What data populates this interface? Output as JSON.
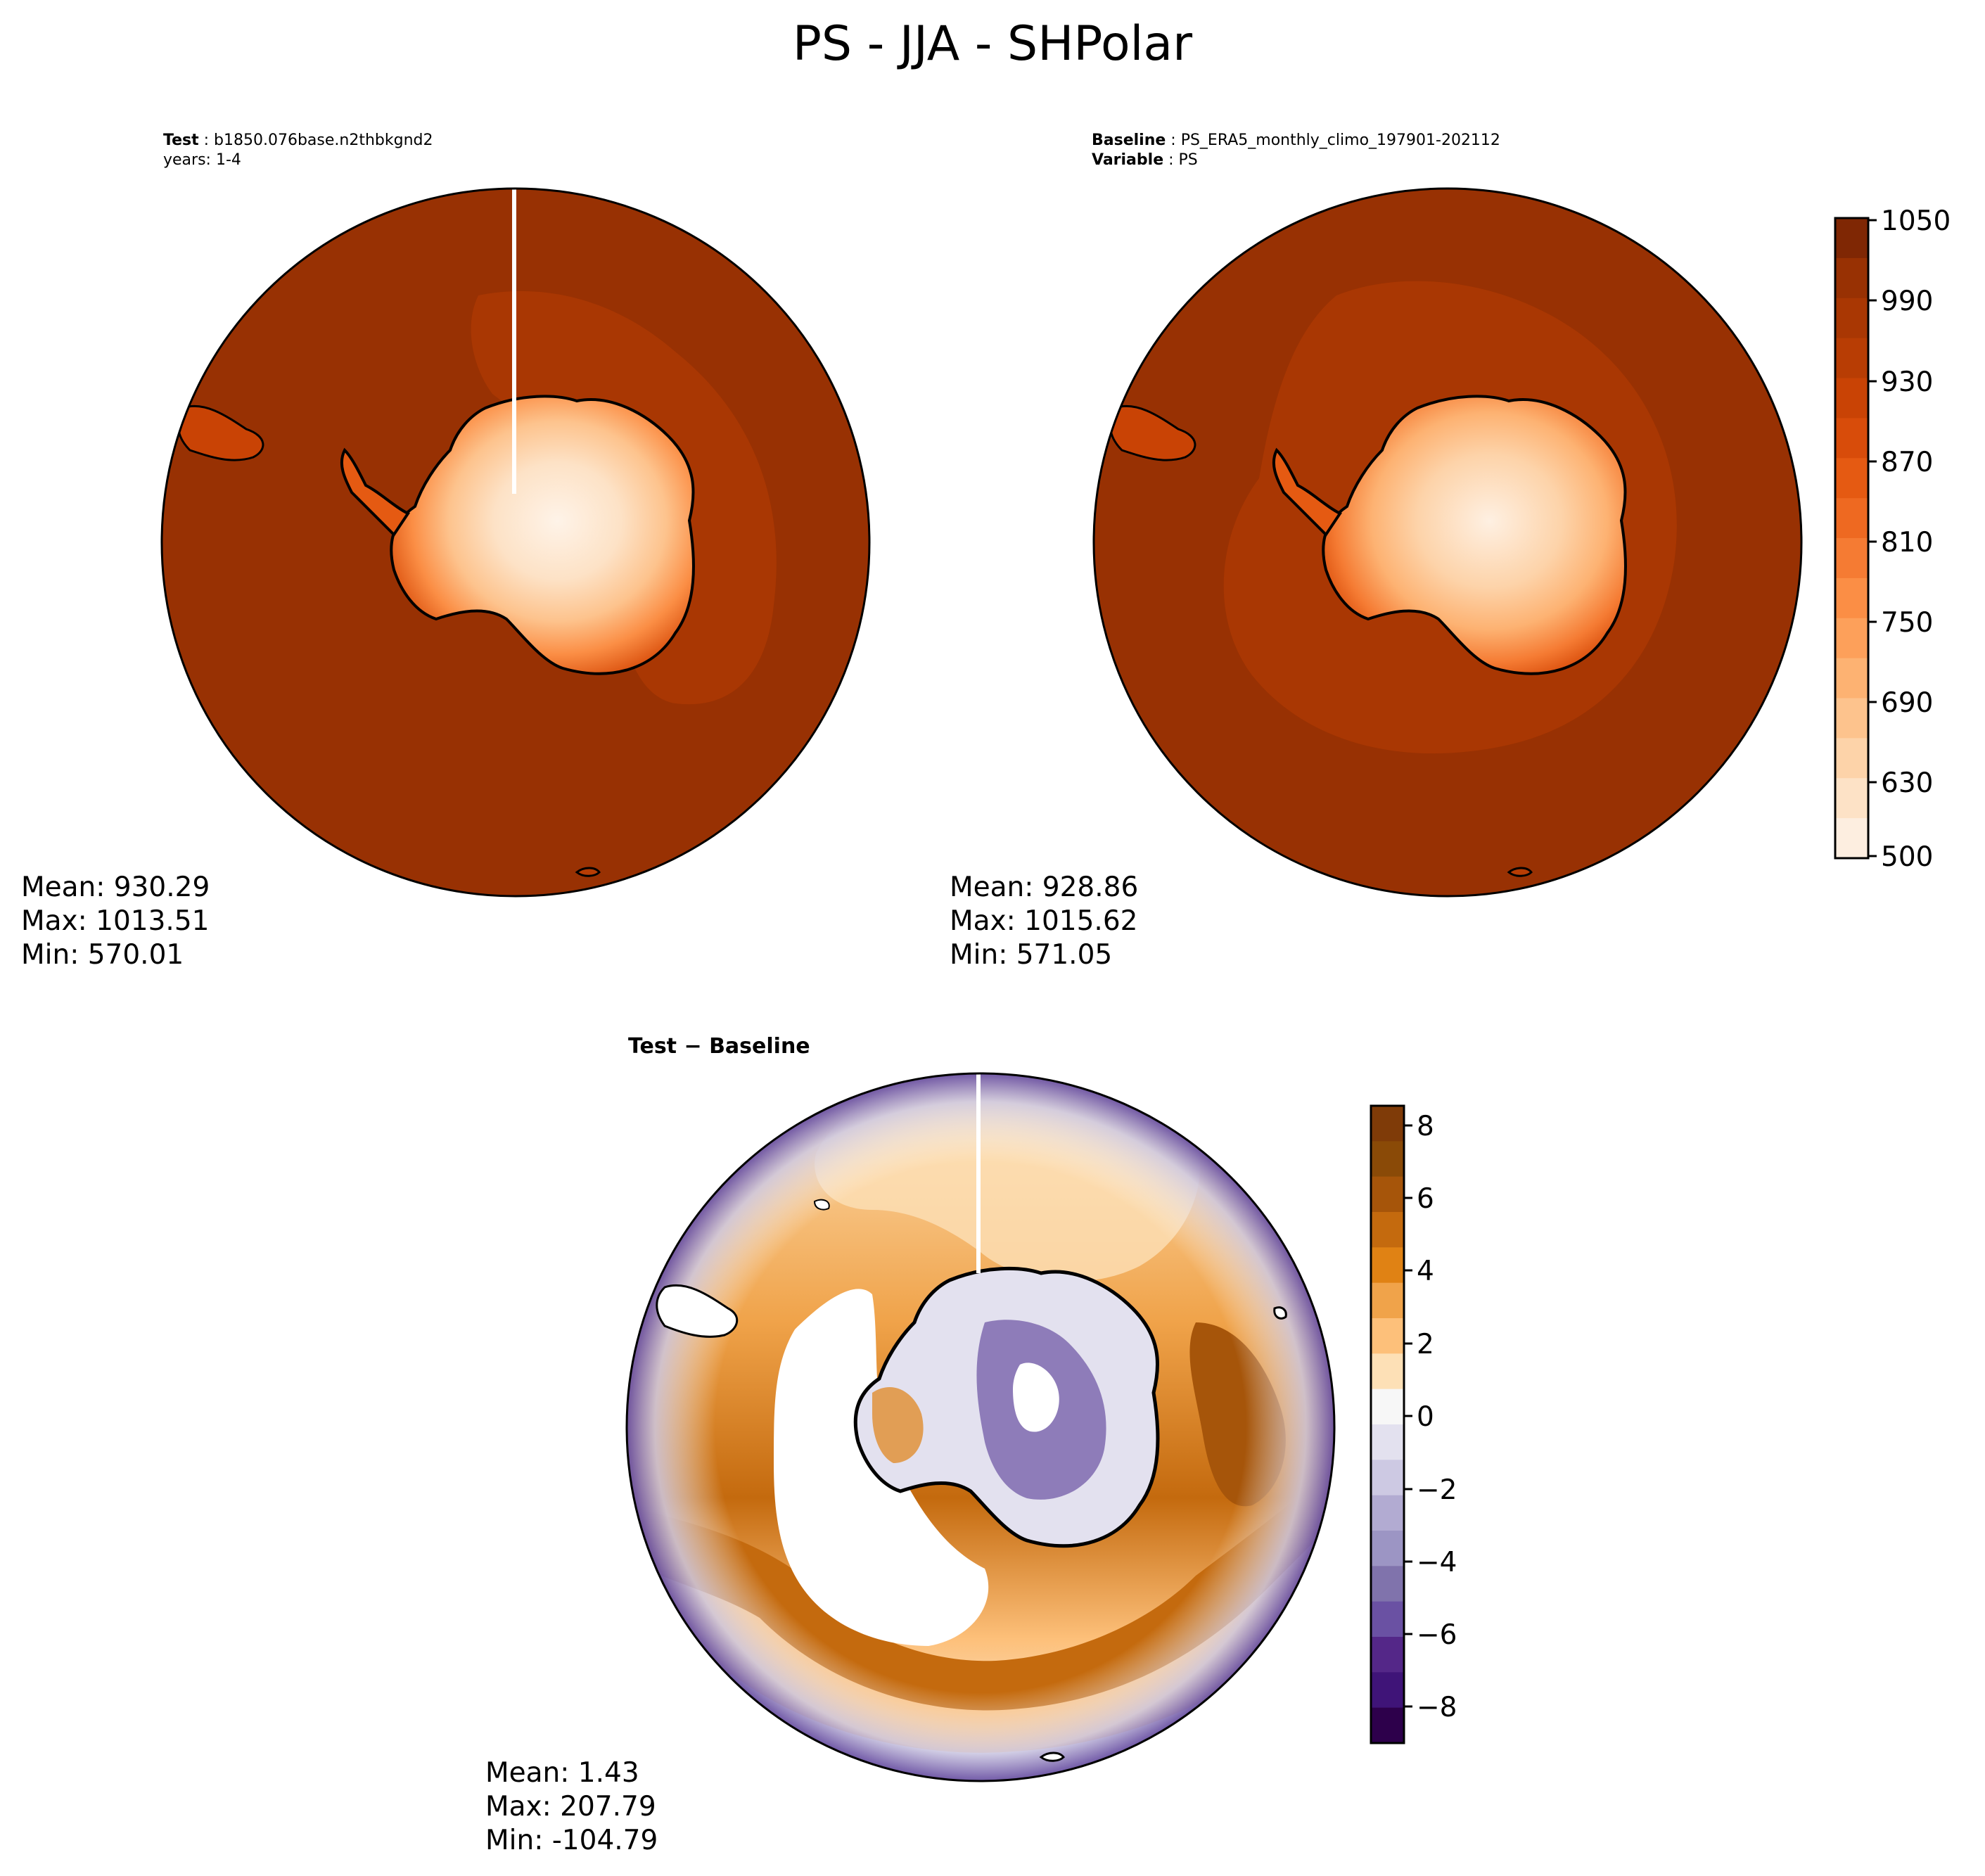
{
  "figure": {
    "title": "PS - JJA - SHPolar"
  },
  "test_panel": {
    "label_key": "Test",
    "label_value": "b1850.076base.n2thbkgnd2",
    "years": "years: 1-4",
    "mean": "Mean: 930.29",
    "max": "Max: 1013.51",
    "min": "Min: 570.01"
  },
  "baseline_panel": {
    "label_key": "Baseline",
    "label_value": "PS_ERA5_monthly_climo_197901-202112",
    "variable_key": "Variable",
    "variable_value": "PS",
    "mean": "Mean: 928.86",
    "max": "Max: 1015.62",
    "min": "Min: 571.05"
  },
  "diff_panel": {
    "label_left": "Test",
    "label_op": " − ",
    "label_right": "Baseline",
    "mean": "Mean:  1.43",
    "max": "Max: 207.79",
    "min": "Min: -104.79"
  },
  "colorbar_top": {
    "ticks": [
      "1050",
      "990",
      "930",
      "870",
      "810",
      "750",
      "690",
      "630",
      "500"
    ],
    "colors": [
      "#fdeee0",
      "#fde2c6",
      "#fdd3a9",
      "#fdc38d",
      "#fdb272",
      "#fda05a",
      "#fb8e45",
      "#f57b33",
      "#ee6921",
      "#e55a12",
      "#d84c0a",
      "#c94305",
      "#b83d04",
      "#a93703",
      "#983103",
      "#7f2704"
    ]
  },
  "colorbar_diff": {
    "ticks": [
      "8",
      "6",
      "4",
      "2",
      "0",
      "−2",
      "−4",
      "−6",
      "−8"
    ],
    "colors": [
      "#2d004b",
      "#3f1478",
      "#542788",
      "#6a51a3",
      "#8073ac",
      "#9c95c4",
      "#b2abd2",
      "#cdc9e3",
      "#e3e1ef",
      "#f7f7f7",
      "#fde0b6",
      "#fdc07a",
      "#f0a34a",
      "#e08214",
      "#c46a0e",
      "#a6550a",
      "#8a4a07",
      "#7f3b08"
    ]
  },
  "map_colors": {
    "ocean_dark": "#983103",
    "ocean_mid": "#a93703",
    "ice_light": "#fdeee0",
    "diff_orange": "#e08214",
    "diff_purple": "#542788"
  }
}
